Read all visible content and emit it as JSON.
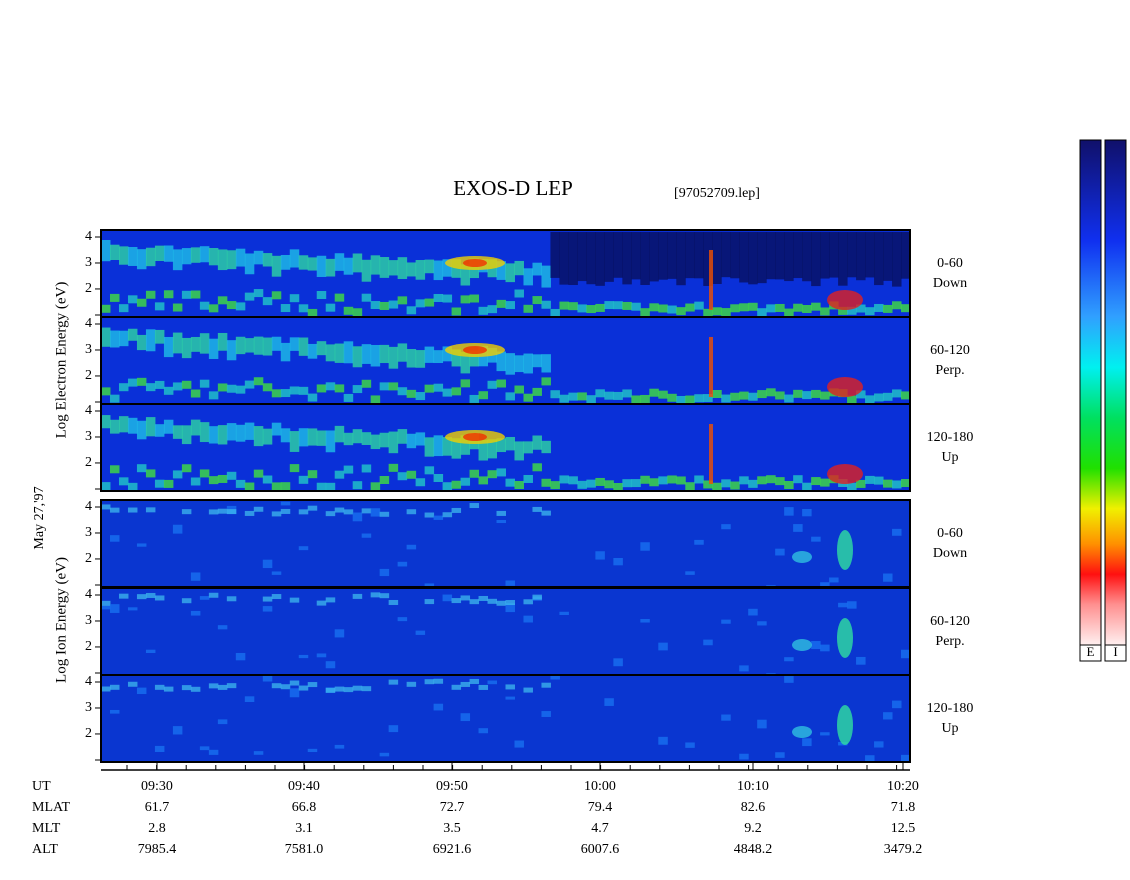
{
  "title": "EXOS-D LEP",
  "file": "[97052709.lep]",
  "date_label": "May 27,'97",
  "ylim": [
    0.92,
    4.27
  ],
  "yticks": [
    2,
    3,
    4
  ],
  "groups": [
    {
      "label": "Log Electron Energy (eV)",
      "panels": [
        {
          "range": "0-60",
          "direction": "Down"
        },
        {
          "range": "60-120",
          "direction": "Perp."
        },
        {
          "range": "120-180",
          "direction": "Up"
        }
      ]
    },
    {
      "label": "Log Ion Energy (eV)",
      "panels": [
        {
          "range": "0-60",
          "direction": "Down"
        },
        {
          "range": "60-120",
          "direction": "Perp."
        },
        {
          "range": "120-180",
          "direction": "Up"
        }
      ]
    }
  ],
  "orbit_table": {
    "rows": [
      {
        "name": "UT",
        "values": [
          "09:30",
          "09:40",
          "09:50",
          "10:00",
          "10:10",
          "10:20"
        ]
      },
      {
        "name": "MLAT",
        "values": [
          "61.7",
          "66.8",
          "72.7",
          "79.4",
          "82.6",
          "71.8"
        ]
      },
      {
        "name": "MLT",
        "values": [
          "2.8",
          "3.1",
          "3.5",
          "4.7",
          "9.2",
          "12.5"
        ]
      },
      {
        "name": "ALT",
        "values": [
          "7985.4",
          "7581.0",
          "6921.6",
          "6007.6",
          "4848.2",
          "3479.2"
        ]
      }
    ]
  },
  "colorbars": [
    "E",
    "I"
  ]
}
